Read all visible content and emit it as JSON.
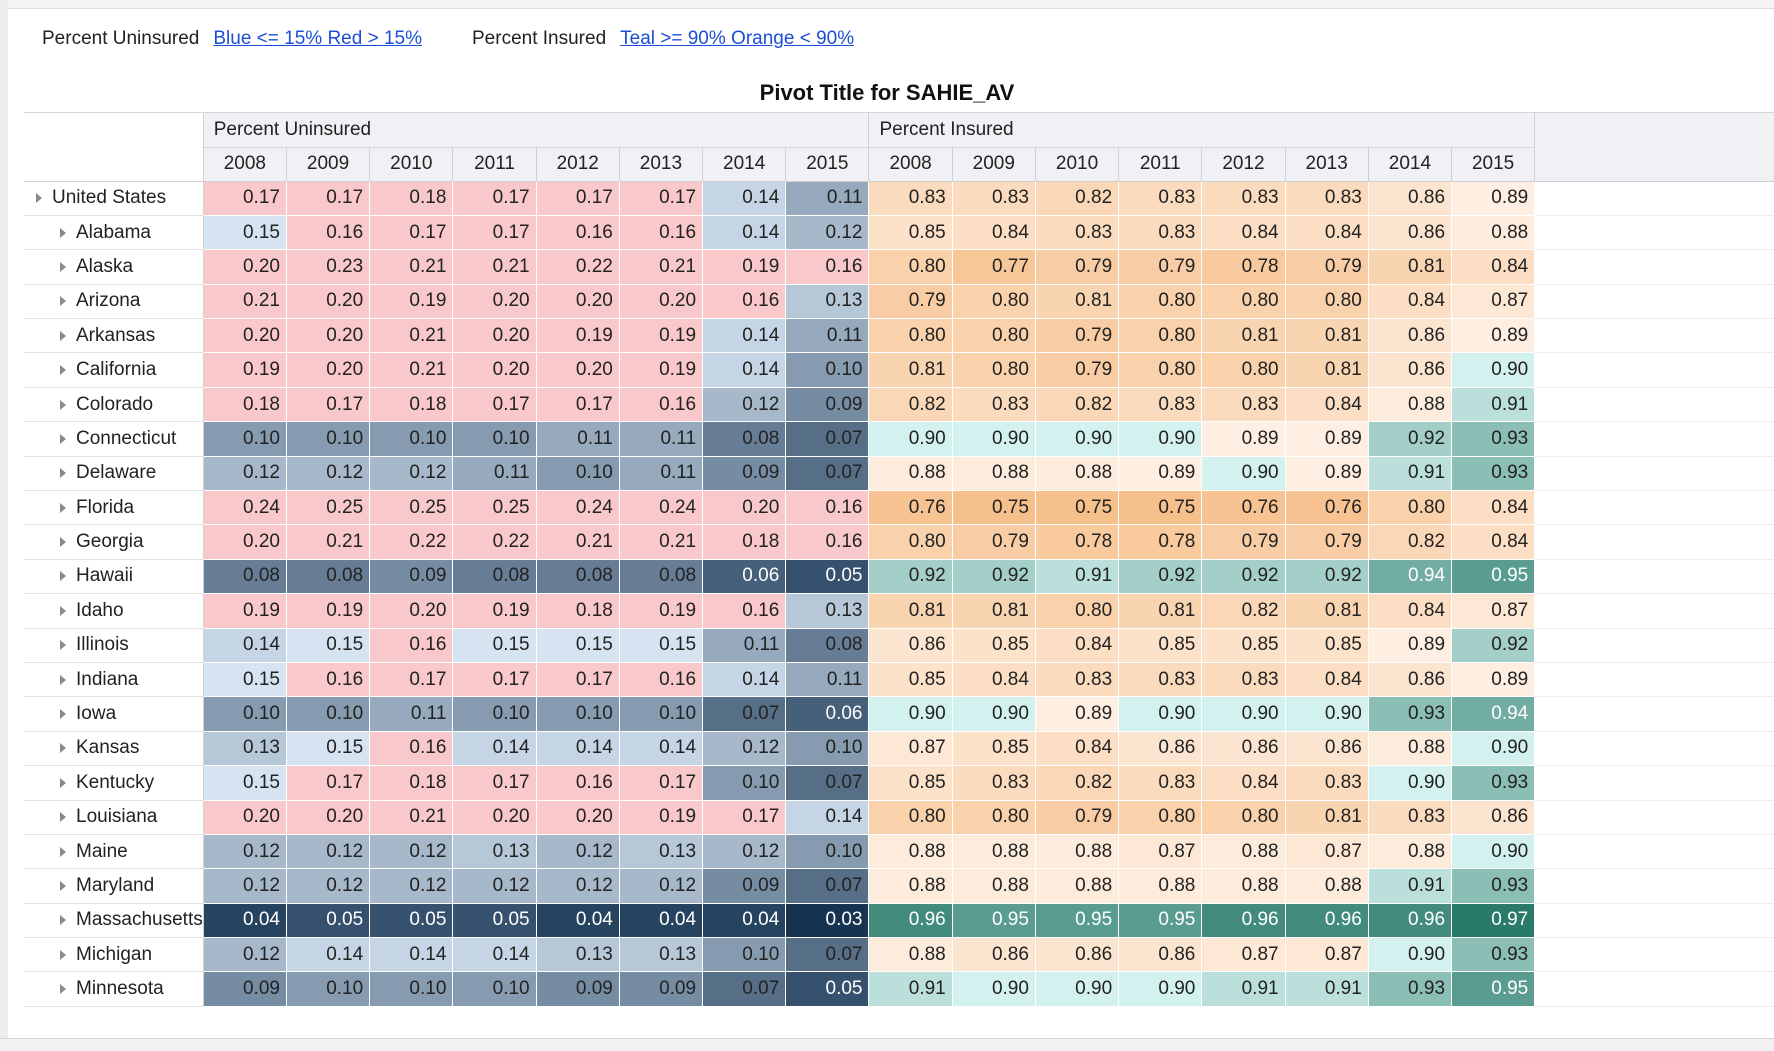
{
  "legend": {
    "uninsured_label": "Percent Uninsured",
    "uninsured_link": "Blue <= 15% Red > 15%",
    "insured_label": "Percent Insured",
    "insured_link": "Teal >= 90% Orange < 90%"
  },
  "title": "Pivot Title for SAHIE_AV",
  "measures": [
    "Percent Uninsured",
    "Percent Insured"
  ],
  "years": [
    "2008",
    "2009",
    "2010",
    "2011",
    "2012",
    "2013",
    "2014",
    "2015"
  ],
  "color_scale": {
    "blue_light": "#d6e4f2",
    "blue_dark": "#163452",
    "red": "#f9c8cb",
    "teal_light": "#d3f1ee",
    "teal_dark": "#2a7a6a",
    "orange_light": "#feefe2",
    "orange_dark": "#f6c08c"
  },
  "rows": [
    {
      "name": "United States",
      "level": 0,
      "uninsured": [
        "0.17",
        "0.17",
        "0.18",
        "0.17",
        "0.17",
        "0.17",
        "0.14",
        "0.11"
      ],
      "insured": [
        "0.83",
        "0.83",
        "0.82",
        "0.83",
        "0.83",
        "0.83",
        "0.86",
        "0.89"
      ]
    },
    {
      "name": "Alabama",
      "level": 1,
      "uninsured": [
        "0.15",
        "0.16",
        "0.17",
        "0.17",
        "0.16",
        "0.16",
        "0.14",
        "0.12"
      ],
      "insured": [
        "0.85",
        "0.84",
        "0.83",
        "0.83",
        "0.84",
        "0.84",
        "0.86",
        "0.88"
      ]
    },
    {
      "name": "Alaska",
      "level": 1,
      "uninsured": [
        "0.20",
        "0.23",
        "0.21",
        "0.21",
        "0.22",
        "0.21",
        "0.19",
        "0.16"
      ],
      "insured": [
        "0.80",
        "0.77",
        "0.79",
        "0.79",
        "0.78",
        "0.79",
        "0.81",
        "0.84"
      ]
    },
    {
      "name": "Arizona",
      "level": 1,
      "uninsured": [
        "0.21",
        "0.20",
        "0.19",
        "0.20",
        "0.20",
        "0.20",
        "0.16",
        "0.13"
      ],
      "insured": [
        "0.79",
        "0.80",
        "0.81",
        "0.80",
        "0.80",
        "0.80",
        "0.84",
        "0.87"
      ]
    },
    {
      "name": "Arkansas",
      "level": 1,
      "uninsured": [
        "0.20",
        "0.20",
        "0.21",
        "0.20",
        "0.19",
        "0.19",
        "0.14",
        "0.11"
      ],
      "insured": [
        "0.80",
        "0.80",
        "0.79",
        "0.80",
        "0.81",
        "0.81",
        "0.86",
        "0.89"
      ]
    },
    {
      "name": "California",
      "level": 1,
      "uninsured": [
        "0.19",
        "0.20",
        "0.21",
        "0.20",
        "0.20",
        "0.19",
        "0.14",
        "0.10"
      ],
      "insured": [
        "0.81",
        "0.80",
        "0.79",
        "0.80",
        "0.80",
        "0.81",
        "0.86",
        "0.90"
      ]
    },
    {
      "name": "Colorado",
      "level": 1,
      "uninsured": [
        "0.18",
        "0.17",
        "0.18",
        "0.17",
        "0.17",
        "0.16",
        "0.12",
        "0.09"
      ],
      "insured": [
        "0.82",
        "0.83",
        "0.82",
        "0.83",
        "0.83",
        "0.84",
        "0.88",
        "0.91"
      ]
    },
    {
      "name": "Connecticut",
      "level": 1,
      "uninsured": [
        "0.10",
        "0.10",
        "0.10",
        "0.10",
        "0.11",
        "0.11",
        "0.08",
        "0.07"
      ],
      "insured": [
        "0.90",
        "0.90",
        "0.90",
        "0.90",
        "0.89",
        "0.89",
        "0.92",
        "0.93"
      ]
    },
    {
      "name": "Delaware",
      "level": 1,
      "uninsured": [
        "0.12",
        "0.12",
        "0.12",
        "0.11",
        "0.10",
        "0.11",
        "0.09",
        "0.07"
      ],
      "insured": [
        "0.88",
        "0.88",
        "0.88",
        "0.89",
        "0.90",
        "0.89",
        "0.91",
        "0.93"
      ]
    },
    {
      "name": "Florida",
      "level": 1,
      "uninsured": [
        "0.24",
        "0.25",
        "0.25",
        "0.25",
        "0.24",
        "0.24",
        "0.20",
        "0.16"
      ],
      "insured": [
        "0.76",
        "0.75",
        "0.75",
        "0.75",
        "0.76",
        "0.76",
        "0.80",
        "0.84"
      ]
    },
    {
      "name": "Georgia",
      "level": 1,
      "uninsured": [
        "0.20",
        "0.21",
        "0.22",
        "0.22",
        "0.21",
        "0.21",
        "0.18",
        "0.16"
      ],
      "insured": [
        "0.80",
        "0.79",
        "0.78",
        "0.78",
        "0.79",
        "0.79",
        "0.82",
        "0.84"
      ]
    },
    {
      "name": "Hawaii",
      "level": 1,
      "uninsured": [
        "0.08",
        "0.08",
        "0.09",
        "0.08",
        "0.08",
        "0.08",
        "0.06",
        "0.05"
      ],
      "insured": [
        "0.92",
        "0.92",
        "0.91",
        "0.92",
        "0.92",
        "0.92",
        "0.94",
        "0.95"
      ]
    },
    {
      "name": "Idaho",
      "level": 1,
      "uninsured": [
        "0.19",
        "0.19",
        "0.20",
        "0.19",
        "0.18",
        "0.19",
        "0.16",
        "0.13"
      ],
      "insured": [
        "0.81",
        "0.81",
        "0.80",
        "0.81",
        "0.82",
        "0.81",
        "0.84",
        "0.87"
      ]
    },
    {
      "name": "Illinois",
      "level": 1,
      "uninsured": [
        "0.14",
        "0.15",
        "0.16",
        "0.15",
        "0.15",
        "0.15",
        "0.11",
        "0.08"
      ],
      "insured": [
        "0.86",
        "0.85",
        "0.84",
        "0.85",
        "0.85",
        "0.85",
        "0.89",
        "0.92"
      ]
    },
    {
      "name": "Indiana",
      "level": 1,
      "uninsured": [
        "0.15",
        "0.16",
        "0.17",
        "0.17",
        "0.17",
        "0.16",
        "0.14",
        "0.11"
      ],
      "insured": [
        "0.85",
        "0.84",
        "0.83",
        "0.83",
        "0.83",
        "0.84",
        "0.86",
        "0.89"
      ]
    },
    {
      "name": "Iowa",
      "level": 1,
      "uninsured": [
        "0.10",
        "0.10",
        "0.11",
        "0.10",
        "0.10",
        "0.10",
        "0.07",
        "0.06"
      ],
      "insured": [
        "0.90",
        "0.90",
        "0.89",
        "0.90",
        "0.90",
        "0.90",
        "0.93",
        "0.94"
      ]
    },
    {
      "name": "Kansas",
      "level": 1,
      "uninsured": [
        "0.13",
        "0.15",
        "0.16",
        "0.14",
        "0.14",
        "0.14",
        "0.12",
        "0.10"
      ],
      "insured": [
        "0.87",
        "0.85",
        "0.84",
        "0.86",
        "0.86",
        "0.86",
        "0.88",
        "0.90"
      ]
    },
    {
      "name": "Kentucky",
      "level": 1,
      "uninsured": [
        "0.15",
        "0.17",
        "0.18",
        "0.17",
        "0.16",
        "0.17",
        "0.10",
        "0.07"
      ],
      "insured": [
        "0.85",
        "0.83",
        "0.82",
        "0.83",
        "0.84",
        "0.83",
        "0.90",
        "0.93"
      ]
    },
    {
      "name": "Louisiana",
      "level": 1,
      "uninsured": [
        "0.20",
        "0.20",
        "0.21",
        "0.20",
        "0.20",
        "0.19",
        "0.17",
        "0.14"
      ],
      "insured": [
        "0.80",
        "0.80",
        "0.79",
        "0.80",
        "0.80",
        "0.81",
        "0.83",
        "0.86"
      ]
    },
    {
      "name": "Maine",
      "level": 1,
      "uninsured": [
        "0.12",
        "0.12",
        "0.12",
        "0.13",
        "0.12",
        "0.13",
        "0.12",
        "0.10"
      ],
      "insured": [
        "0.88",
        "0.88",
        "0.88",
        "0.87",
        "0.88",
        "0.87",
        "0.88",
        "0.90"
      ]
    },
    {
      "name": "Maryland",
      "level": 1,
      "uninsured": [
        "0.12",
        "0.12",
        "0.12",
        "0.12",
        "0.12",
        "0.12",
        "0.09",
        "0.07"
      ],
      "insured": [
        "0.88",
        "0.88",
        "0.88",
        "0.88",
        "0.88",
        "0.88",
        "0.91",
        "0.93"
      ]
    },
    {
      "name": "Massachusetts",
      "level": 1,
      "uninsured": [
        "0.04",
        "0.05",
        "0.05",
        "0.05",
        "0.04",
        "0.04",
        "0.04",
        "0.03"
      ],
      "insured": [
        "0.96",
        "0.95",
        "0.95",
        "0.95",
        "0.96",
        "0.96",
        "0.96",
        "0.97"
      ]
    },
    {
      "name": "Michigan",
      "level": 1,
      "uninsured": [
        "0.12",
        "0.14",
        "0.14",
        "0.14",
        "0.13",
        "0.13",
        "0.10",
        "0.07"
      ],
      "insured": [
        "0.88",
        "0.86",
        "0.86",
        "0.86",
        "0.87",
        "0.87",
        "0.90",
        "0.93"
      ]
    },
    {
      "name": "Minnesota",
      "level": 1,
      "uninsured": [
        "0.09",
        "0.10",
        "0.10",
        "0.10",
        "0.09",
        "0.09",
        "0.07",
        "0.05"
      ],
      "insured": [
        "0.91",
        "0.90",
        "0.90",
        "0.90",
        "0.91",
        "0.91",
        "0.93",
        "0.95"
      ]
    }
  ]
}
